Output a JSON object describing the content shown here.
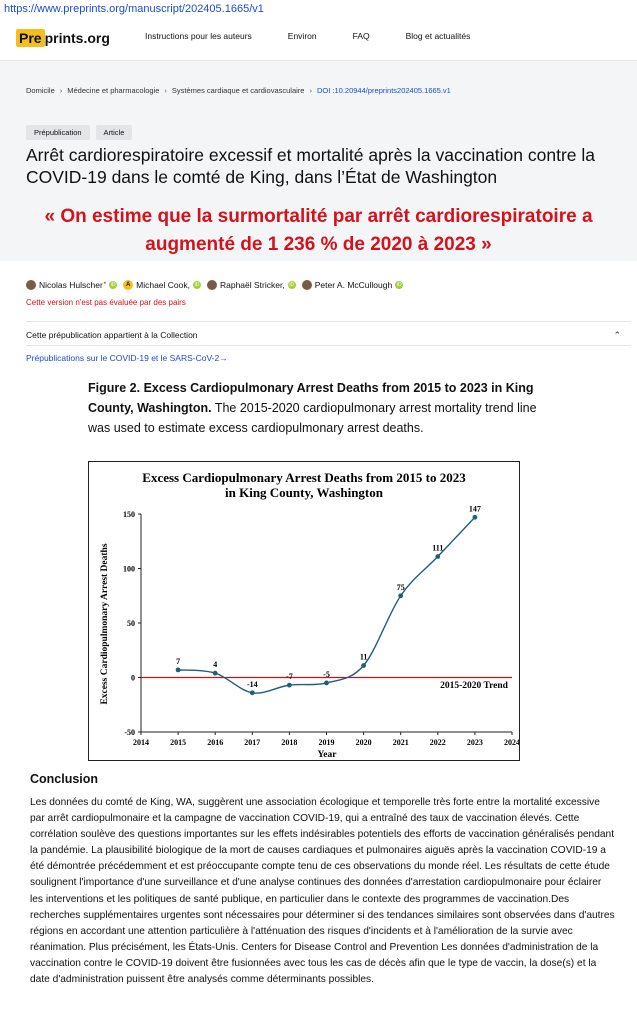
{
  "browser": {
    "url": "https://www.preprints.org/manuscript/202405.1665/v1"
  },
  "header": {
    "logo_pre": "Pre",
    "logo_rest": "prints.org",
    "nav": [
      "Instructions pour les auteurs",
      "Environ",
      "FAQ",
      "Blog et actualités"
    ]
  },
  "breadcrumb": [
    "Domicile",
    "Médecine et pharmacologie",
    "Systèmes cardiaque et cardiovasculaire",
    "DOI :10.20944/preprints202405.1665.v1"
  ],
  "badges": [
    "Prépublication",
    "Article"
  ],
  "article_title": "Arrêt cardiorespiratoire excessif et mortalité après la vaccination contre la COVID-19 dans le comté de King, dans l’État de Washington",
  "overlay_quote": "« On estime que la surmortalité par arrêt cardiorespiratoire a augmenté de 1 236 % de 2020 à 2023 »",
  "authors": [
    {
      "name": "Nicolas Hulscher",
      "mark": "*"
    },
    {
      "name": "Michael Cook,",
      "initial": "A"
    },
    {
      "name": "Raphaël Stricker,"
    },
    {
      "name": "Peter A. McCullough"
    }
  ],
  "orcid_label": "iD",
  "not_reviewed": "Cette version n'est pas évaluée par des pairs",
  "collection": {
    "text": "Cette prépublication appartient à la Collection",
    "link": "Prépublications sur le COVID-19 et le SARS-CoV-2→"
  },
  "figure_caption": {
    "bold": "Figure 2. Excess Cardiopulmonary Arrest Deaths from 2015 to 2023 in King County, Washington.",
    "text": " The 2015-2020 cardiopulmonary arrest mortality trend line was used to estimate excess cardiopulmonary arrest deaths."
  },
  "chart_data": {
    "type": "line",
    "title": "Excess Cardiopulmonary Arrest Deaths from 2015 to 2023",
    "subtitle": "in King County, Washington",
    "xlabel": "Year",
    "ylabel": "Excess Cardiopulmonary Arrest Deaths",
    "x": [
      2015,
      2016,
      2017,
      2018,
      2019,
      2020,
      2021,
      2022,
      2023
    ],
    "values": [
      7,
      4,
      -14,
      -7,
      -5,
      11,
      75,
      111,
      147
    ],
    "data_labels": [
      "7",
      "4",
      "-14",
      "-7",
      "-5",
      "11",
      "75",
      "111",
      "147"
    ],
    "xlim": [
      2014,
      2024
    ],
    "ylim": [
      -50,
      150
    ],
    "xticks": [
      2014,
      2015,
      2016,
      2017,
      2018,
      2019,
      2020,
      2021,
      2022,
      2023,
      2024
    ],
    "yticks": [
      -50,
      0,
      50,
      100,
      150
    ],
    "trend_line": {
      "y": 0,
      "label": "2015-2020 Trend",
      "color": "#d0101a"
    },
    "series_color": "#1f5f7a",
    "grid": false
  },
  "conclusion": {
    "heading": "Conclusion",
    "text": "Les données du comté de King, WA, suggèrent une association écologique et temporelle très forte entre la mortalité excessive par arrêt cardiopulmonaire et la campagne de vaccination COVID-19, qui a entraîné des taux de vaccination élevés. Cette corrélation soulève des questions importantes sur les effets indésirables potentiels des efforts de vaccination généralisés pendant la pandémie. La plausibilité biologique de la mort de causes cardiaques et pulmonaires aiguës après la vaccination COVID-19 a été démontrée précédemment et est préoccupante compte tenu de ces observations du monde réel. Les résultats de cette étude soulignent l'importance d'une surveillance et d'une analyse continues des données d'arrestation cardiopulmonaire pour éclairer les interventions et les politiques de santé publique, en particulier dans le contexte des programmes de vaccination.Des recherches supplémentaires urgentes sont nécessaires pour déterminer si des tendances similaires sont observées dans d'autres régions en accordant une attention particulière à l'atténuation des risques d'incidents et à l'amélioration de la survie avec réanimation. Plus précisément, les États-Unis. Centers for Disease Control and Prevention Les données d'administration de la vaccination contre le COVID-19 doivent être fusionnées avec tous les cas de décès afin que le type de vaccin, la dose(s) et la date d'administration puissent être analysés comme déterminants possibles."
  }
}
